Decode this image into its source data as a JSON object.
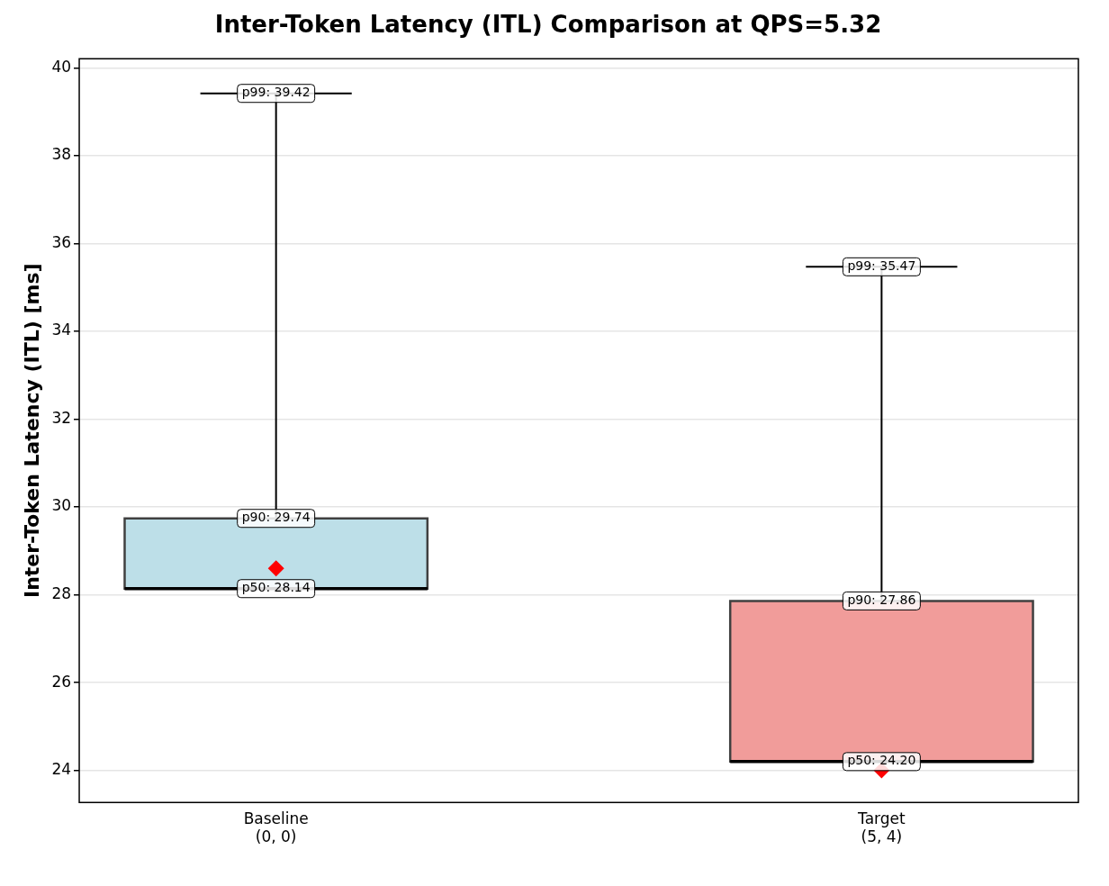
{
  "chart_data": {
    "type": "box",
    "title": "Inter-Token Latency (ITL) Comparison at QPS=5.32",
    "ylabel": "Inter-Token Latency (ITL) [ms]",
    "categories": [
      "Baseline\n(0, 0)",
      "Target\n(5, 4)"
    ],
    "boxes": [
      {
        "low": 28.14,
        "q1": 28.14,
        "median": 28.14,
        "q3": 29.74,
        "high": 39.42,
        "mean": 28.6
      },
      {
        "low": 24.2,
        "q1": 24.2,
        "median": 24.2,
        "q3": 27.86,
        "high": 35.47,
        "mean": 24.0
      }
    ],
    "colors": [
      "#bddfe8",
      "#f19c9a"
    ],
    "ylim": [
      23.27,
      40.21
    ],
    "yticks": [
      24,
      26,
      28,
      30,
      32,
      34,
      36,
      38,
      40
    ],
    "grid": "y",
    "marker": "diamond",
    "annotations": [
      {
        "text": "p99: 39.42",
        "x": "Baseline\n(0, 0)",
        "y": 39.42
      },
      {
        "text": "p90: 29.74",
        "x": "Baseline\n(0, 0)",
        "y": 29.74
      },
      {
        "text": "p50: 28.14",
        "x": "Baseline\n(0, 0)",
        "y": 28.14
      },
      {
        "text": "p99: 35.47",
        "x": "Target\n(5, 4)",
        "y": 35.47
      },
      {
        "text": "p90: 27.86",
        "x": "Target\n(5, 4)",
        "y": 27.86
      },
      {
        "text": "p50: 24.20",
        "x": "Target\n(5, 4)",
        "y": 24.2
      }
    ]
  }
}
